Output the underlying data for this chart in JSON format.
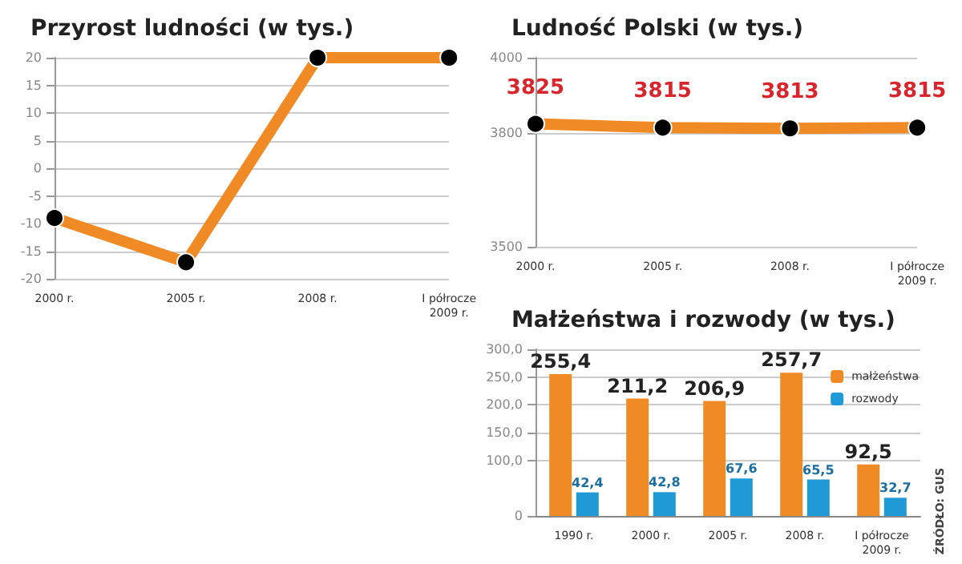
{
  "chart_data": [
    {
      "type": "line",
      "title": "Przyrost ludności (w tys.)",
      "categories": [
        "2000 r.",
        "2005 r.",
        "2008 r.",
        "I półrocze\n2009 r."
      ],
      "series": [
        {
          "color": "#f08a24",
          "values": [
            -9,
            -17,
            20,
            20
          ]
        }
      ],
      "ylim": [
        -20,
        20
      ],
      "yticks": [
        -20,
        -15,
        -10,
        -5,
        0,
        5,
        10,
        15,
        20
      ],
      "grid": "y",
      "marker": "circle",
      "line_style": "solid"
    },
    {
      "type": "line",
      "title": "Ludność Polski (w tys.)",
      "categories": [
        "2000 r.",
        "2005 r.",
        "2008 r.",
        "I półrocze\n2009 r."
      ],
      "series": [
        {
          "color": "#f08a24",
          "values": [
            3825,
            3815,
            3813,
            3815
          ]
        }
      ],
      "ylim": [
        3500,
        4000
      ],
      "yticks": [
        3500,
        3800,
        4000
      ],
      "grid": "y",
      "marker": "circle",
      "line_style": "solid",
      "data_labels": true
    },
    {
      "type": "bar",
      "title": "Małżeństwa i rozwody (w tys.)",
      "categories": [
        "1990 r.",
        "2000 r.",
        "2005 r.",
        "2008 r.",
        "I półrocze\n2009 r."
      ],
      "series": [
        {
          "name": "małżeństwa",
          "color": "#f08a24",
          "values": [
            255.4,
            211.2,
            206.9,
            257.7,
            92.5
          ],
          "value_labels": [
            "255,4",
            "211,2",
            "206,9",
            "257,7",
            "92,5"
          ]
        },
        {
          "name": "rozwody",
          "color": "#1f9ad6",
          "values": [
            42.4,
            42.8,
            67.6,
            65.5,
            32.7
          ],
          "value_labels": [
            "42,4",
            "42,8",
            "67,6",
            "65,5",
            "32,7"
          ]
        }
      ],
      "ylim": [
        0,
        300
      ],
      "yticks": [
        0,
        {
          "value": 100,
          "label": "100,0"
        },
        {
          "value": 150,
          "label": "150,0"
        },
        {
          "value": 200,
          "label": "200,0"
        },
        {
          "value": 250,
          "label": "250,0"
        },
        {
          "value": 300,
          "label": "300,0"
        }
      ],
      "grid": "y",
      "legend": "top right",
      "annotations": [
        "ŹRÓDŁO: GUS"
      ]
    }
  ]
}
